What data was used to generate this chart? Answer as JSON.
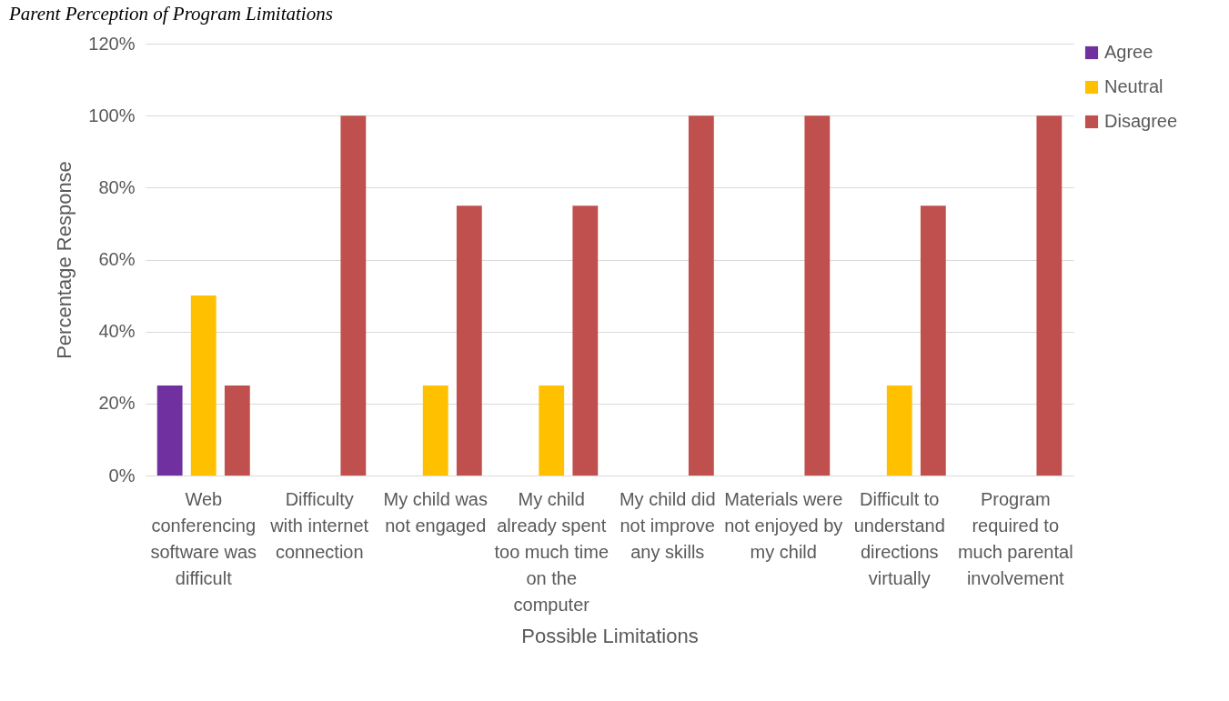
{
  "chart_data": {
    "type": "bar",
    "title": "Parent Perception of Program Limitations",
    "xlabel": "Possible Limitations",
    "ylabel": "Percentage Response",
    "categories": [
      "Web conferencing software was difficult",
      "Difficulty with internet connection",
      "My child was not engaged",
      "My child already spent too much time on the computer",
      "My child did not improve any skills",
      "Materials were not enjoyed by my child",
      "Difficult to understand directions virtually",
      "Program required to much parental involvement"
    ],
    "series": [
      {
        "name": "Agree",
        "color": "#7030a0",
        "values": [
          25,
          0,
          0,
          0,
          0,
          0,
          0,
          0
        ]
      },
      {
        "name": "Neutral",
        "color": "#ffc000",
        "values": [
          50,
          0,
          25,
          25,
          0,
          0,
          25,
          0
        ]
      },
      {
        "name": "Disagree",
        "color": "#c0504d",
        "values": [
          25,
          100,
          75,
          75,
          100,
          100,
          75,
          100
        ]
      }
    ],
    "ylim": [
      0,
      120
    ],
    "yticks": [
      {
        "value": 0,
        "label": "0%"
      },
      {
        "value": 20,
        "label": "20%"
      },
      {
        "value": 40,
        "label": "40%"
      },
      {
        "value": 60,
        "label": "60%"
      },
      {
        "value": 80,
        "label": "80%"
      },
      {
        "value": 100,
        "label": "100%"
      },
      {
        "value": 120,
        "label": "120%"
      }
    ],
    "grid": "y",
    "legend": "right"
  }
}
